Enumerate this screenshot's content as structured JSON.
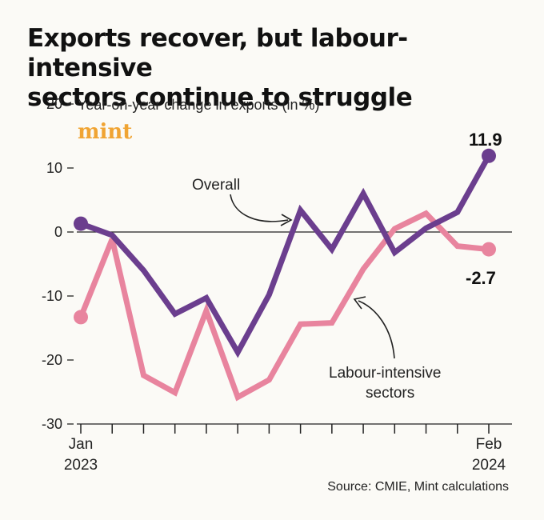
{
  "header": {
    "title_line1": "Exports recover, but labour-intensive",
    "title_line2": "sectors continue to struggle"
  },
  "brand": {
    "name": "mint",
    "color": "#f0a433"
  },
  "source": "Source: CMIE, Mint calculations",
  "chart_data": {
    "type": "line",
    "title": "Exports recover, but labour-intensive sectors continue to struggle",
    "ylabel": "Year-on-year change in exports (in %)",
    "ylim": [
      -30,
      20
    ],
    "yticks": [
      20,
      10,
      0,
      -10,
      -20,
      -30
    ],
    "grid": false,
    "zero_line": true,
    "x": [
      "Jan 2023",
      "Feb 2023",
      "Mar 2023",
      "Apr 2023",
      "May 2023",
      "Jun 2023",
      "Jul 2023",
      "Aug 2023",
      "Sep 2023",
      "Oct 2023",
      "Nov 2023",
      "Dec 2023",
      "Jan 2024",
      "Feb 2024"
    ],
    "x_tick_labels": {
      "first": [
        "Jan",
        "2023"
      ],
      "last": [
        "Feb",
        "2024"
      ]
    },
    "series": [
      {
        "name": "Overall",
        "color": "#6b3e8e",
        "values": [
          1.3,
          -0.5,
          -6.0,
          -12.8,
          -10.3,
          -18.8,
          -9.8,
          3.4,
          -2.7,
          6.0,
          -3.2,
          0.6,
          3.1,
          11.9
        ],
        "end_label": "11.9"
      },
      {
        "name": "Labour-intensive sectors",
        "label_lines": [
          "Labour-intensive",
          "sectors"
        ],
        "color": "#e8849e",
        "values": [
          -13.3,
          -1.1,
          -22.4,
          -25.1,
          -12.3,
          -25.8,
          -23.1,
          -14.4,
          -14.2,
          -5.8,
          0.5,
          2.9,
          -2.2,
          -2.7
        ],
        "end_label": "-2.7"
      }
    ]
  }
}
